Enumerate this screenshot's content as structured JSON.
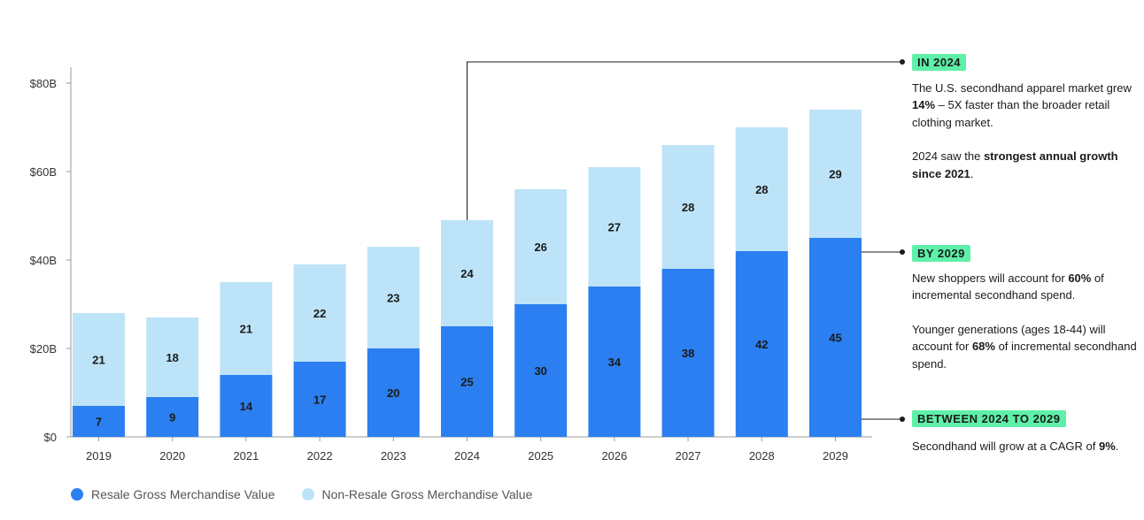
{
  "colors": {
    "resale": "#2b7ff0",
    "non_resale": "#bde3f8",
    "badge_bg": "#5ef0a8",
    "axis": "#999999"
  },
  "chart_data": {
    "type": "bar",
    "stacked": true,
    "categories": [
      "2019",
      "2020",
      "2021",
      "2022",
      "2023",
      "2024",
      "2025",
      "2026",
      "2027",
      "2028",
      "2029"
    ],
    "series": [
      {
        "name": "Resale Gross Merchandise Value",
        "values": [
          7,
          9,
          14,
          17,
          20,
          25,
          30,
          34,
          38,
          42,
          45
        ]
      },
      {
        "name": "Non-Resale Gross Merchandise Value",
        "values": [
          21,
          18,
          21,
          22,
          23,
          24,
          26,
          27,
          28,
          28,
          29
        ]
      }
    ],
    "ylim": [
      0,
      80
    ],
    "yticks": [
      {
        "value": 0,
        "label": "$0"
      },
      {
        "value": 20,
        "label": "$20B"
      },
      {
        "value": 40,
        "label": "$40B"
      },
      {
        "value": 60,
        "label": "$60B"
      },
      {
        "value": 80,
        "label": "$80B"
      }
    ],
    "xlabel": "",
    "ylabel": "",
    "grid": false,
    "legend_position": "bottom-left"
  },
  "callouts": {
    "in2024": {
      "badge": "IN 2024",
      "p1": [
        "The U.S. secondhand apparel market grew ",
        "14%",
        " – 5X faster than the broader retail clothing market."
      ],
      "p2": [
        "2024 saw the ",
        "strongest annual growth since 2021",
        "."
      ]
    },
    "by2029": {
      "badge": "BY 2029",
      "p1": [
        "New shoppers will account for ",
        "60%",
        " of incremental secondhand spend."
      ],
      "p2": [
        "Younger generations (ages 18-44) will account for ",
        "68%",
        " of incremental secondhand spend."
      ]
    },
    "between": {
      "badge": "BETWEEN 2024 TO 2029",
      "p1": [
        "Secondhand will grow at a CAGR of ",
        "9%",
        "."
      ]
    }
  }
}
